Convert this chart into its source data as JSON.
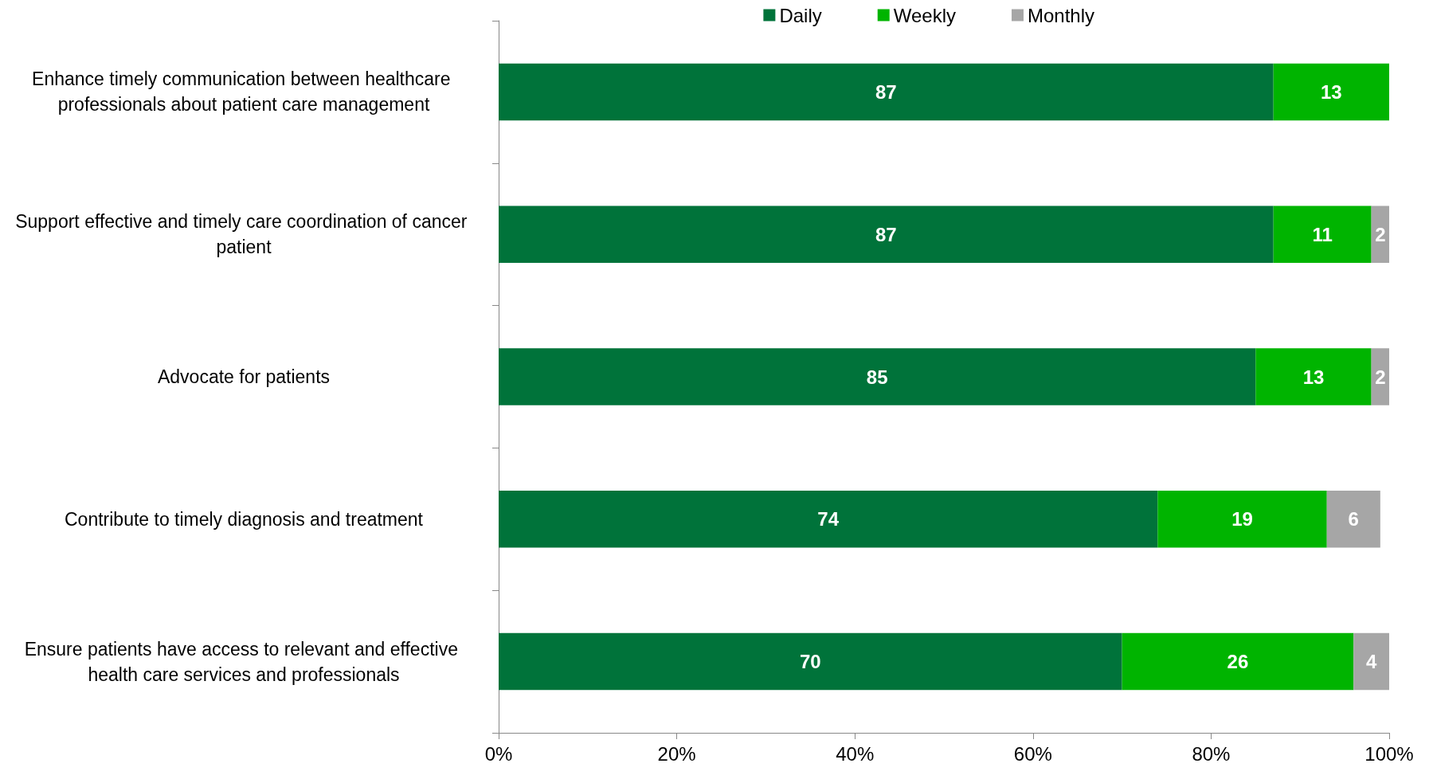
{
  "chart_data": {
    "type": "bar",
    "orientation": "horizontal",
    "stacked": true,
    "data_labels": true,
    "grid": false,
    "legend": "top right",
    "categories": [
      "Enhance timely communication between healthcare professionals about patient care management",
      "Support effective and timely care coordination of cancer patient",
      "Advocate for patients",
      "Contribute to timely diagnosis and treatment",
      "Ensure patients have access to relevant and effective health care services and professionals"
    ],
    "series": [
      {
        "name": "Daily",
        "color": "#00733a",
        "values": [
          87,
          87,
          85,
          74,
          70
        ]
      },
      {
        "name": "Weekly",
        "color": "#00b400",
        "values": [
          13,
          11,
          13,
          19,
          26
        ]
      },
      {
        "name": "Monthly",
        "color": "#a6a6a6",
        "values": [
          null,
          2,
          2,
          6,
          4
        ]
      }
    ],
    "xlim": [
      0,
      100
    ],
    "xticks": [
      {
        "value": 0,
        "label": "0%"
      },
      {
        "value": 20,
        "label": "20%"
      },
      {
        "value": 40,
        "label": "40%"
      },
      {
        "value": 60,
        "label": "60%"
      },
      {
        "value": 80,
        "label": "80%"
      },
      {
        "value": 100,
        "label": "100%"
      }
    ]
  }
}
